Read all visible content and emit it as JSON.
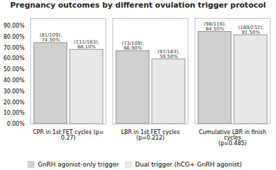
{
  "chart_data": {
    "type": "bar",
    "title": "Pregnancy outcomes by different ovulation trigger protocol",
    "categories": [
      "CPR in 1st FET cycles (p= 0.27)",
      "LBR in 1st FET cycles (p=0.212)",
      "Cumulative LBR in finish cycles\n(p=0.485)"
    ],
    "series": [
      {
        "name": "GnRH agonist-only trigger",
        "color": "#d0d0d0",
        "values": [
          74.3,
          66.9,
          84.5
        ],
        "value_labels": [
          "74.30%",
          "66.90%",
          "84.50%"
        ],
        "count_labels": [
          "(81/109),",
          "(73/109),",
          "(98/116),"
        ]
      },
      {
        "name": "Dual trigger (hCG+ GnRH agonist)",
        "color": "#e8e8e8",
        "values": [
          68.1,
          59.5,
          81.5
        ],
        "value_labels": [
          "68.10%",
          "59.50%",
          "81.50%"
        ],
        "count_labels": [
          "(111/163),",
          "(97/163),",
          "(189/232),"
        ]
      }
    ],
    "ylim": [
      0,
      97
    ],
    "yticks": [
      {
        "value": 0,
        "label": "0.00%"
      },
      {
        "value": 10,
        "label": "10.00%"
      },
      {
        "value": 20,
        "label": "20.00%"
      },
      {
        "value": 30,
        "label": "30.00%"
      },
      {
        "value": 40,
        "label": "40.00%"
      },
      {
        "value": 50,
        "label": "50.00%"
      },
      {
        "value": 60,
        "label": "60.00%"
      },
      {
        "value": 70,
        "label": "70.00%"
      },
      {
        "value": 80,
        "label": "80.00%"
      },
      {
        "value": 90,
        "label": "90.00%"
      }
    ],
    "grid": false,
    "legend": "bottom",
    "data_labels": true
  }
}
